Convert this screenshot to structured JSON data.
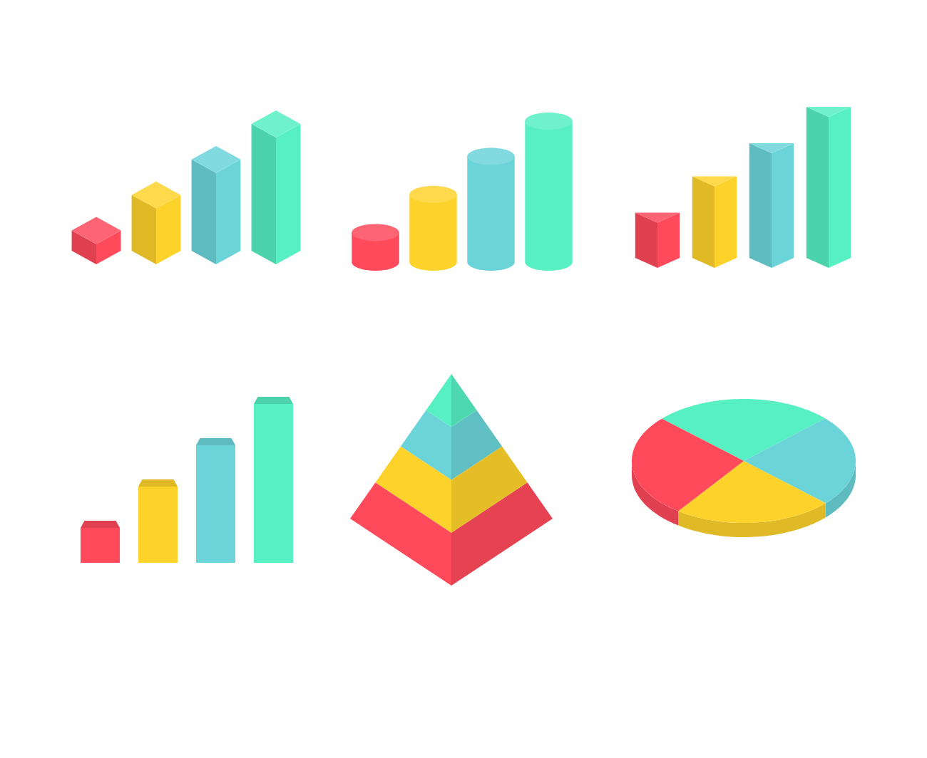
{
  "chart_data": [
    {
      "type": "bar",
      "marker": "cube",
      "values": [
        16,
        44,
        72,
        100
      ],
      "colors": [
        "#fe4a5b",
        "#fdd22b",
        "#6bd4d9",
        "#56f0c2"
      ],
      "ylim": [
        0,
        100
      ],
      "tick_labels": false
    },
    {
      "type": "bar",
      "marker": "cylinder",
      "values": [
        21,
        48,
        75,
        100
      ],
      "colors": [
        "#fe4a5b",
        "#fdd22b",
        "#6bd4d9",
        "#56f0c2"
      ],
      "ylim": [
        0,
        100
      ],
      "tick_labels": false
    },
    {
      "type": "bar",
      "marker": "prism",
      "values": [
        30,
        54,
        76,
        100
      ],
      "colors": [
        "#fe4a5b",
        "#fdd22b",
        "#6bd4d9",
        "#56f0c2"
      ],
      "ylim": [
        0,
        100
      ],
      "tick_labels": false
    },
    {
      "type": "bar",
      "marker": "column",
      "values": [
        22,
        48,
        74,
        100
      ],
      "colors": [
        "#fe4a5b",
        "#fdd22b",
        "#6bd4d9",
        "#56f0c2"
      ],
      "ylim": [
        0,
        100
      ],
      "tick_labels": false
    },
    {
      "type": "pyramid",
      "values": [
        25,
        25,
        25,
        25
      ],
      "colors": [
        "#fe4a5b",
        "#fdd22b",
        "#6bd4d9",
        "#56f0c2"
      ]
    },
    {
      "type": "pie",
      "values": [
        26,
        24,
        23,
        27
      ],
      "colors": [
        "#56f0c2",
        "#6bd4d9",
        "#fdd22b",
        "#fe4a5b"
      ]
    }
  ]
}
